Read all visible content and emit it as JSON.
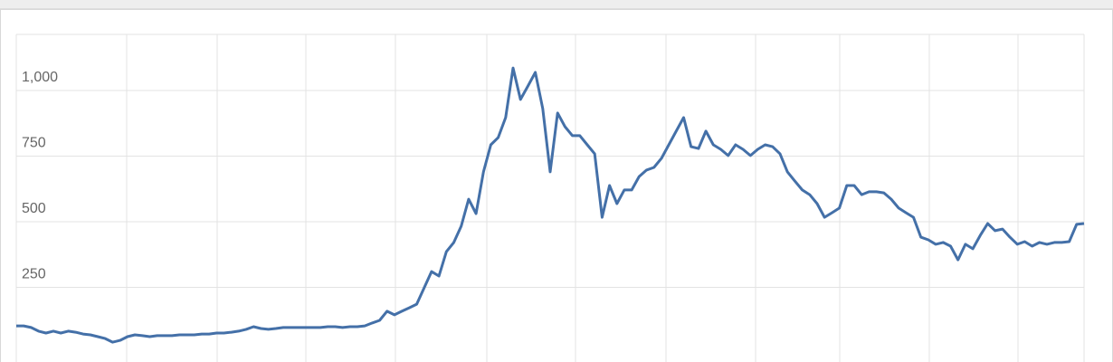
{
  "chart_data": {
    "type": "line",
    "series": [
      {
        "color": "#4470a8",
        "values": [
          103,
          103,
          97,
          83,
          76,
          83,
          76,
          83,
          79,
          72,
          69,
          62,
          55,
          41,
          48,
          62,
          69,
          66,
          62,
          66,
          66,
          66,
          69,
          69,
          69,
          72,
          72,
          76,
          76,
          79,
          83,
          90,
          100,
          93,
          90,
          93,
          97,
          97,
          97,
          97,
          97,
          97,
          100,
          100,
          97,
          100,
          100,
          103,
          114,
          124,
          159,
          145,
          159,
          172,
          186,
          248,
          310,
          293,
          386,
          421,
          483,
          586,
          531,
          690,
          793,
          821,
          897,
          1086,
          966,
          1017,
          1069,
          931,
          690,
          914,
          862,
          828,
          828,
          793,
          759,
          517,
          638,
          569,
          621,
          621,
          672,
          697,
          707,
          741,
          793,
          845,
          897,
          786,
          779,
          845,
          793,
          776,
          752,
          793,
          776,
          752,
          776,
          793,
          786,
          759,
          690,
          655,
          621,
          603,
          569,
          517,
          534,
          552,
          638,
          638,
          603,
          614,
          614,
          610,
          586,
          552,
          534,
          517,
          441,
          431,
          414,
          421,
          407,
          355,
          414,
          397,
          448,
          493,
          466,
          472,
          441,
          414,
          424,
          407,
          421,
          414,
          421,
          421,
          424,
          490,
          493
        ]
      }
    ],
    "ylim": [
      0,
      1200
    ],
    "yticks": [
      250,
      500,
      {
        "value": 750,
        "label": "750"
      },
      {
        "value": 1000,
        "label": "1,000"
      }
    ],
    "grid": true
  }
}
